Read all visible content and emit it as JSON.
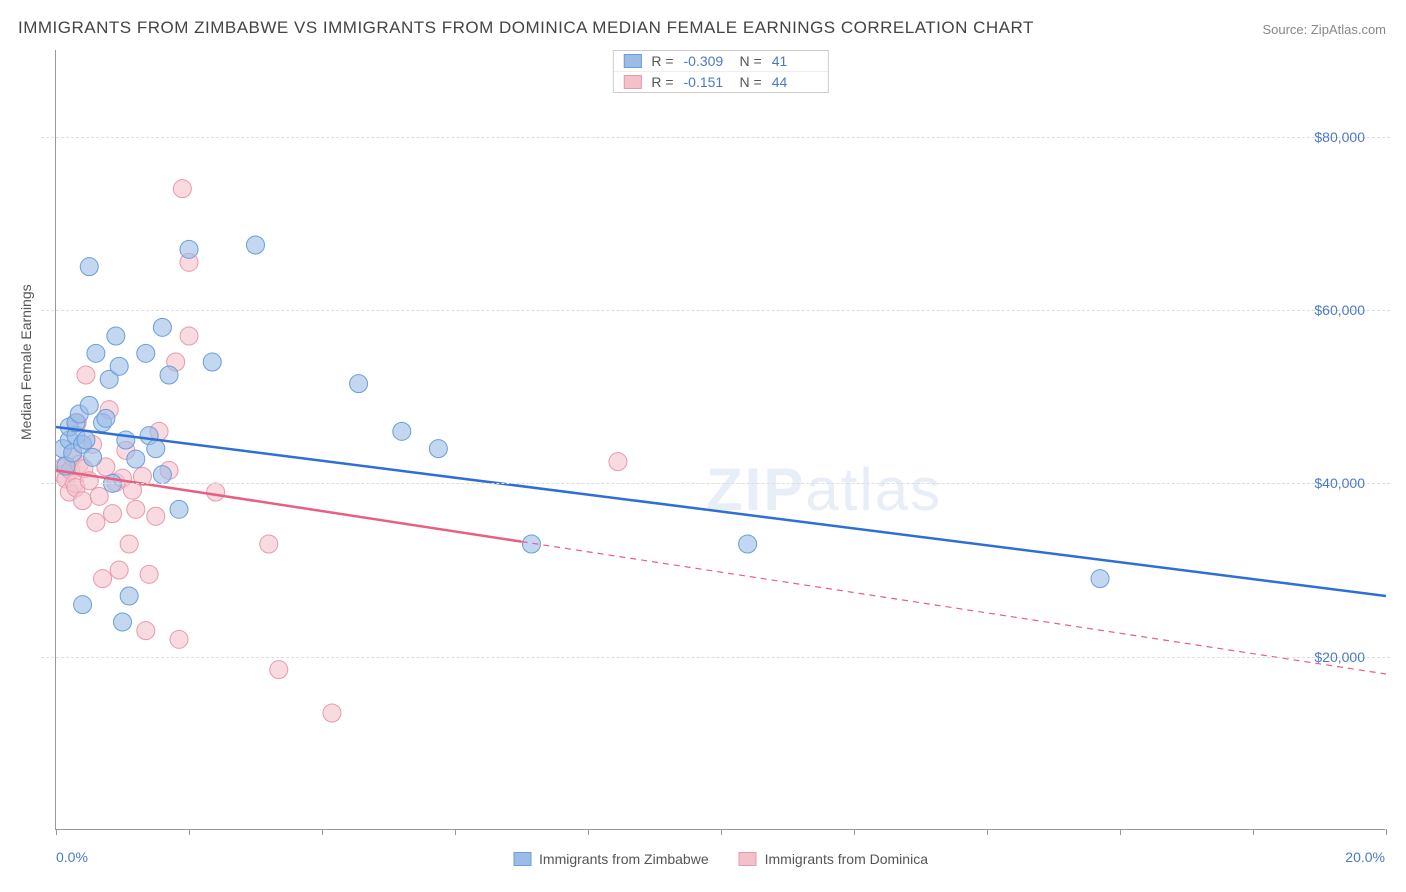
{
  "title": "IMMIGRANTS FROM ZIMBABWE VS IMMIGRANTS FROM DOMINICA MEDIAN FEMALE EARNINGS CORRELATION CHART",
  "source": "Source: ZipAtlas.com",
  "ylabel": "Median Female Earnings",
  "watermark_a": "ZIP",
  "watermark_b": "atlas",
  "chart": {
    "type": "scatter-with-regressions",
    "xlim": [
      0,
      20
    ],
    "ylim": [
      0,
      90000
    ],
    "x_ticks": [
      0,
      2,
      4,
      6,
      8,
      10,
      12,
      14,
      16,
      18,
      20
    ],
    "x_tick_labels": {
      "first": "0.0%",
      "last": "20.0%"
    },
    "y_grid": [
      20000,
      40000,
      60000,
      80000
    ],
    "y_tick_labels": [
      "$20,000",
      "$40,000",
      "$60,000",
      "$80,000"
    ],
    "grid_color": "#dddddd",
    "axis_color": "#999999",
    "background": "#ffffff",
    "marker_radius": 9,
    "marker_opacity": 0.6,
    "line_width": 2.5,
    "font_family": "Arial"
  },
  "series": {
    "zimbabwe": {
      "label": "Immigrants from Zimbabwe",
      "color": "#9bbce8",
      "stroke": "#6b9ed9",
      "line_color": "#2e6fd4",
      "R": "-0.309",
      "N": "41",
      "regression": {
        "x1": 0,
        "y1": 46500,
        "x2": 20,
        "y2": 27000,
        "solid_until_x": 20
      },
      "points": [
        [
          0.1,
          44000
        ],
        [
          0.15,
          42000
        ],
        [
          0.2,
          45000
        ],
        [
          0.2,
          46500
        ],
        [
          0.25,
          43500
        ],
        [
          0.3,
          45500
        ],
        [
          0.3,
          47000
        ],
        [
          0.35,
          48000
        ],
        [
          0.4,
          44500
        ],
        [
          0.4,
          26000
        ],
        [
          0.45,
          45000
        ],
        [
          0.5,
          49000
        ],
        [
          0.5,
          65000
        ],
        [
          0.55,
          43000
        ],
        [
          0.6,
          55000
        ],
        [
          0.7,
          47000
        ],
        [
          0.75,
          47500
        ],
        [
          0.8,
          52000
        ],
        [
          0.85,
          40000
        ],
        [
          0.9,
          57000
        ],
        [
          0.95,
          53500
        ],
        [
          1.0,
          24000
        ],
        [
          1.05,
          45000
        ],
        [
          1.1,
          27000
        ],
        [
          1.2,
          42800
        ],
        [
          1.35,
          55000
        ],
        [
          1.4,
          45500
        ],
        [
          1.5,
          44000
        ],
        [
          1.6,
          58000
        ],
        [
          1.6,
          41000
        ],
        [
          1.7,
          52500
        ],
        [
          1.85,
          37000
        ],
        [
          2.0,
          67000
        ],
        [
          2.35,
          54000
        ],
        [
          3.0,
          67500
        ],
        [
          4.55,
          51500
        ],
        [
          5.2,
          46000
        ],
        [
          5.75,
          44000
        ],
        [
          7.15,
          33000
        ],
        [
          10.4,
          33000
        ],
        [
          15.7,
          29000
        ]
      ]
    },
    "dominica": {
      "label": "Immigrants from Dominica",
      "color": "#f4c1cb",
      "stroke": "#e89aad",
      "line_color": "#e85f82",
      "R": "-0.151",
      "N": "44",
      "regression": {
        "x1": 0,
        "y1": 41500,
        "x2": 20,
        "y2": 18000,
        "solid_until_x": 7
      },
      "points": [
        [
          0.1,
          41000
        ],
        [
          0.12,
          42000
        ],
        [
          0.15,
          40500
        ],
        [
          0.2,
          39000
        ],
        [
          0.22,
          41500
        ],
        [
          0.25,
          43000
        ],
        [
          0.28,
          40000
        ],
        [
          0.3,
          39500
        ],
        [
          0.32,
          47000
        ],
        [
          0.35,
          42200
        ],
        [
          0.4,
          38000
        ],
        [
          0.42,
          41700
        ],
        [
          0.45,
          52500
        ],
        [
          0.5,
          40300
        ],
        [
          0.55,
          44500
        ],
        [
          0.6,
          35500
        ],
        [
          0.65,
          38500
        ],
        [
          0.7,
          29000
        ],
        [
          0.75,
          41900
        ],
        [
          0.8,
          48500
        ],
        [
          0.85,
          36500
        ],
        [
          0.9,
          40100
        ],
        [
          0.95,
          30000
        ],
        [
          1.0,
          40600
        ],
        [
          1.05,
          43800
        ],
        [
          1.1,
          33000
        ],
        [
          1.15,
          39200
        ],
        [
          1.2,
          37000
        ],
        [
          1.3,
          40800
        ],
        [
          1.35,
          23000
        ],
        [
          1.4,
          29500
        ],
        [
          1.5,
          36200
        ],
        [
          1.55,
          46000
        ],
        [
          1.7,
          41500
        ],
        [
          1.8,
          54000
        ],
        [
          1.85,
          22000
        ],
        [
          1.9,
          74000
        ],
        [
          2.0,
          65500
        ],
        [
          2.0,
          57000
        ],
        [
          2.4,
          39000
        ],
        [
          3.2,
          33000
        ],
        [
          3.35,
          18500
        ],
        [
          4.15,
          13500
        ],
        [
          8.45,
          42500
        ]
      ]
    }
  }
}
